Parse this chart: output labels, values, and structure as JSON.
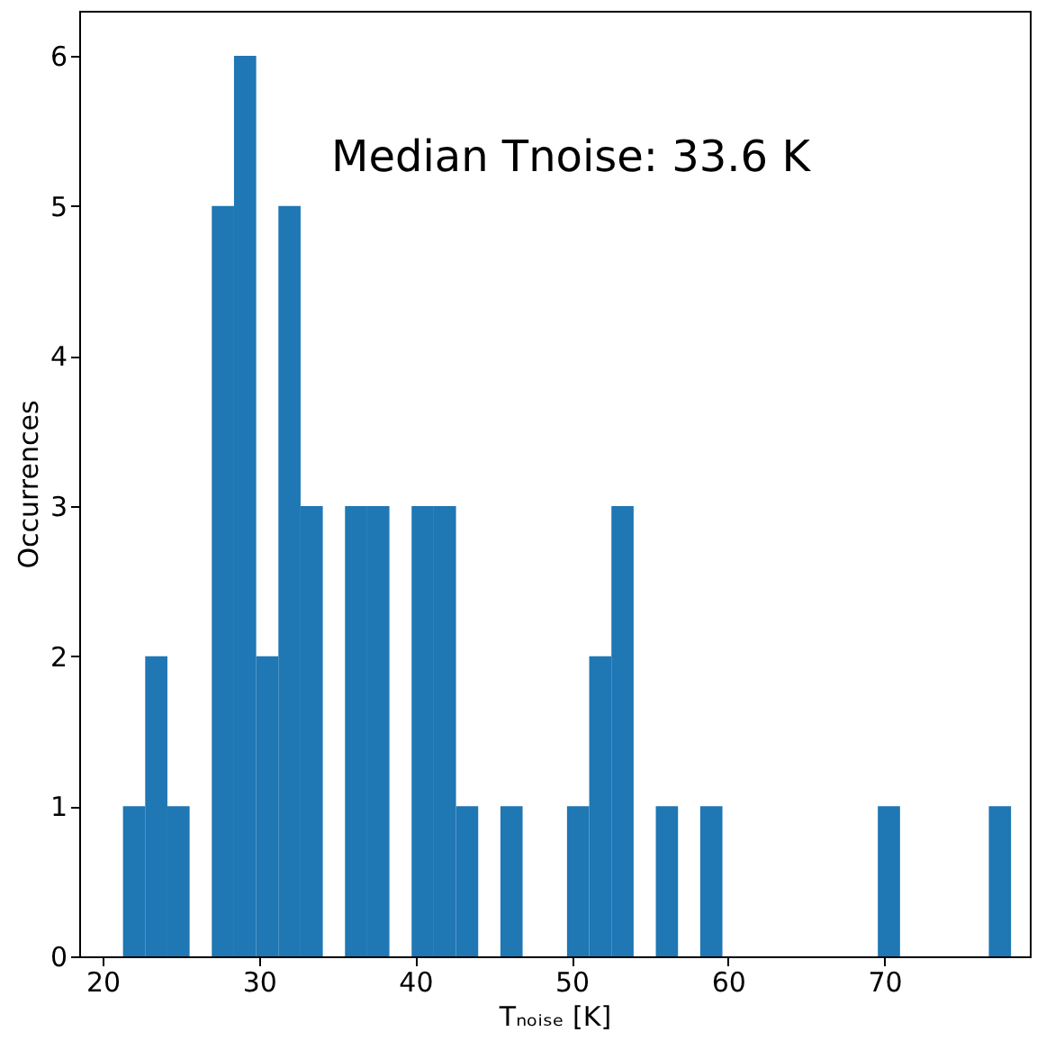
{
  "chart_data": {
    "type": "histogram",
    "xlabel": "Tₙₒᵢₛₑ [K]",
    "ylabel": "Occurrences",
    "color": "#1f77b4",
    "bins": [
      21.3,
      22.72,
      24.14,
      25.56,
      26.98,
      28.4,
      29.82,
      31.24,
      32.66,
      34.08,
      35.5,
      36.92,
      38.34,
      39.76,
      41.18,
      42.6,
      44.02,
      45.44,
      46.86,
      49.7,
      51.12,
      52.54,
      53.96,
      55.38,
      56.8,
      58.22,
      59.64,
      69.58,
      71.0,
      76.68,
      78.1
    ],
    "values": [
      1,
      2,
      1,
      0,
      5,
      6,
      2,
      5,
      3,
      0,
      3,
      3,
      0,
      3,
      3,
      1,
      0,
      1,
      0,
      1,
      2,
      3,
      0,
      1,
      0,
      1,
      0,
      1,
      0,
      1
    ],
    "xlim": [
      18.5,
      79.3
    ],
    "ylim": [
      0,
      6.3
    ],
    "xticks": [
      20,
      30,
      40,
      50,
      60,
      70
    ],
    "yticks": [
      0,
      1,
      2,
      3,
      4,
      5,
      6
    ],
    "annotations": [
      "Median Tnoise: 33.6 K"
    ],
    "grid": false
  }
}
